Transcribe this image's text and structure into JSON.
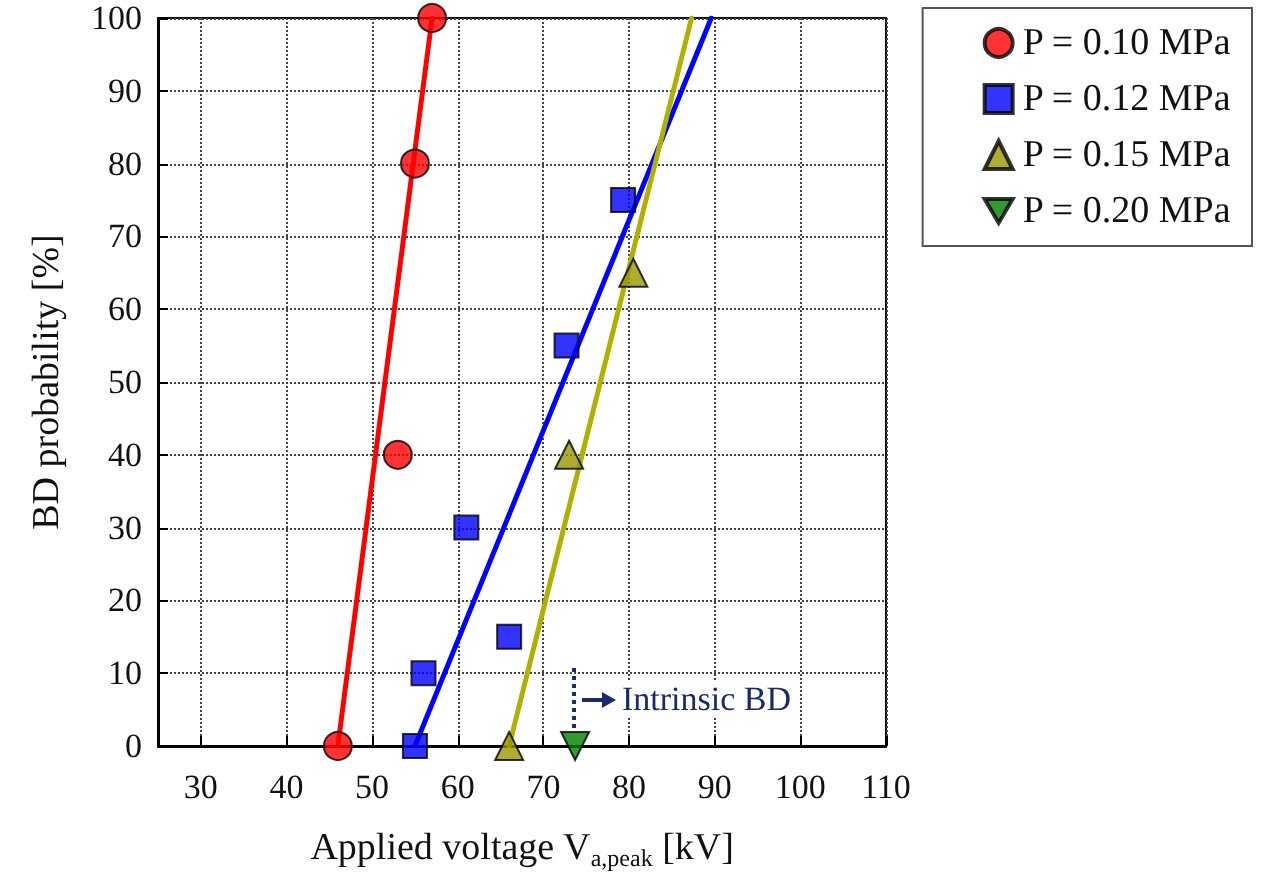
{
  "chart_data": {
    "type": "scatter",
    "xlabel": "Applied voltage V$_{a,peak}$ [kV]",
    "ylabel": "BD probability [%]",
    "xlim": [
      25,
      110
    ],
    "xticks": [
      30,
      40,
      50,
      60,
      70,
      80,
      90,
      100,
      110
    ],
    "ylim": [
      0,
      100
    ],
    "yticks": [
      0,
      10,
      20,
      30,
      40,
      50,
      60,
      70,
      80,
      90,
      100
    ],
    "grid": true,
    "legend": "right",
    "series": [
      {
        "name": "P = 0.10 MPa",
        "color": "#ff0000",
        "marker": "circle",
        "x": [
          46,
          53,
          55,
          57
        ],
        "values": [
          0,
          40,
          80,
          100
        ]
      },
      {
        "name": "P = 0.12 MPa",
        "color": "#0000ff",
        "marker": "square",
        "x": [
          55,
          56,
          66,
          61,
          72.7,
          79.3
        ],
        "values": [
          0,
          10,
          15,
          30,
          55,
          75
        ]
      },
      {
        "name": "P = 0.15 MPa",
        "color": "#999900",
        "marker": "triangle",
        "x": [
          66,
          73,
          80.5
        ],
        "values": [
          0,
          40,
          65
        ]
      },
      {
        "name": "P = 0.20 MPa",
        "color": "#008000",
        "marker": "triangle-down",
        "x": [
          73.7
        ],
        "values": [
          0
        ]
      },
      {
        "type": "line",
        "color": "#ff0000",
        "marker": "none",
        "x": [
          46,
          57
        ],
        "values": [
          0,
          100
        ]
      },
      {
        "type": "line",
        "color": "#0000ff",
        "marker": "none",
        "x": [
          55,
          89.6
        ],
        "values": [
          0,
          100
        ]
      },
      {
        "type": "line",
        "color": "#b0b000",
        "marker": "none",
        "x": [
          66,
          87.3
        ],
        "values": [
          0,
          100
        ]
      }
    ],
    "annotations": [
      "Intrinsic BD"
    ]
  }
}
